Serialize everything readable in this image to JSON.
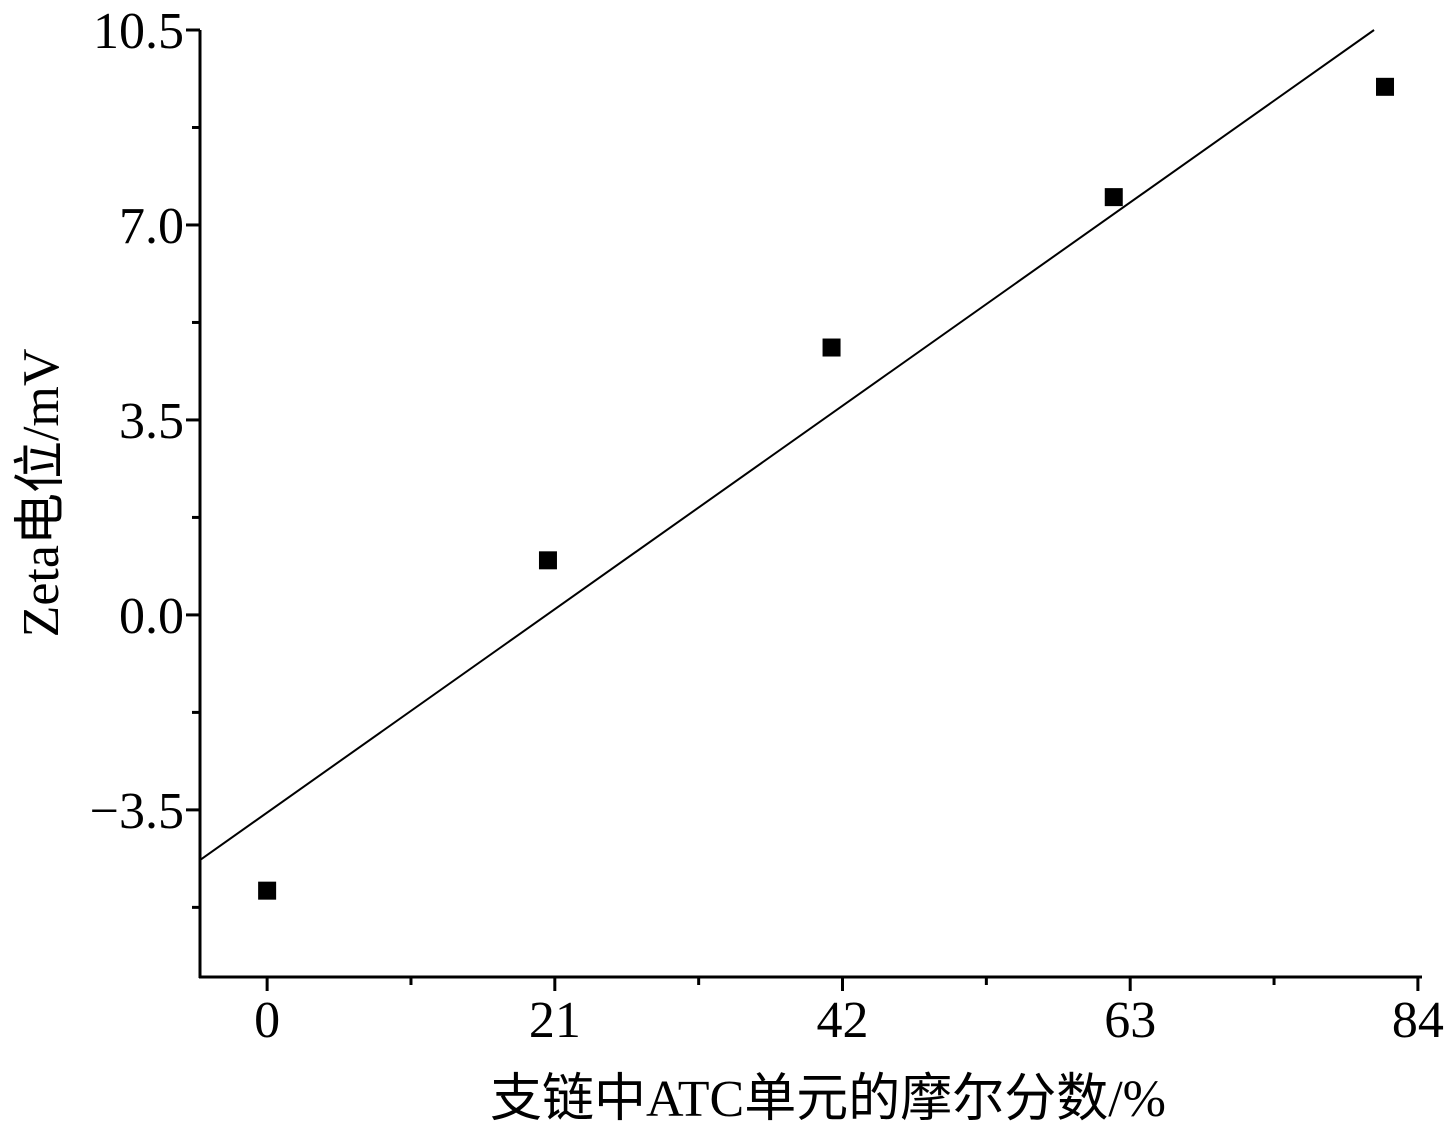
{
  "chart_data": {
    "type": "scatter",
    "title": "",
    "xlabel": "支链中ATC单元的摩尔分数/%",
    "ylabel": "Zeta电位/mV",
    "x_ticks": [
      {
        "value": 0,
        "label": "0"
      },
      {
        "value": 21,
        "label": "21"
      },
      {
        "value": 42,
        "label": "42"
      },
      {
        "value": 63,
        "label": "63"
      },
      {
        "value": 84,
        "label": "84"
      }
    ],
    "y_ticks": [
      {
        "value": -3.5,
        "label": "−3.5"
      },
      {
        "value": 0,
        "label": "0.0"
      },
      {
        "value": 3.5,
        "label": "3.5"
      },
      {
        "value": 7,
        "label": "7.0"
      },
      {
        "value": 10.5,
        "label": "10.5"
      }
    ],
    "xlim": [
      -4.9,
      84.3
    ],
    "ylim": [
      -6.5,
      10.5
    ],
    "grid": false,
    "legend": "none",
    "points": [
      {
        "x": 0,
        "y": -4.95
      },
      {
        "x": 20.5,
        "y": 0.98
      },
      {
        "x": 41.2,
        "y": 4.8
      },
      {
        "x": 61.8,
        "y": 7.5
      },
      {
        "x": 81.6,
        "y": 9.48
      }
    ],
    "fit_line": {
      "x0": -4.9,
      "y0": -4.4,
      "x1": 80.8,
      "y1": 10.5
    },
    "colors": {
      "marker": "#000000",
      "line": "#000000",
      "axis": "#000000"
    }
  }
}
